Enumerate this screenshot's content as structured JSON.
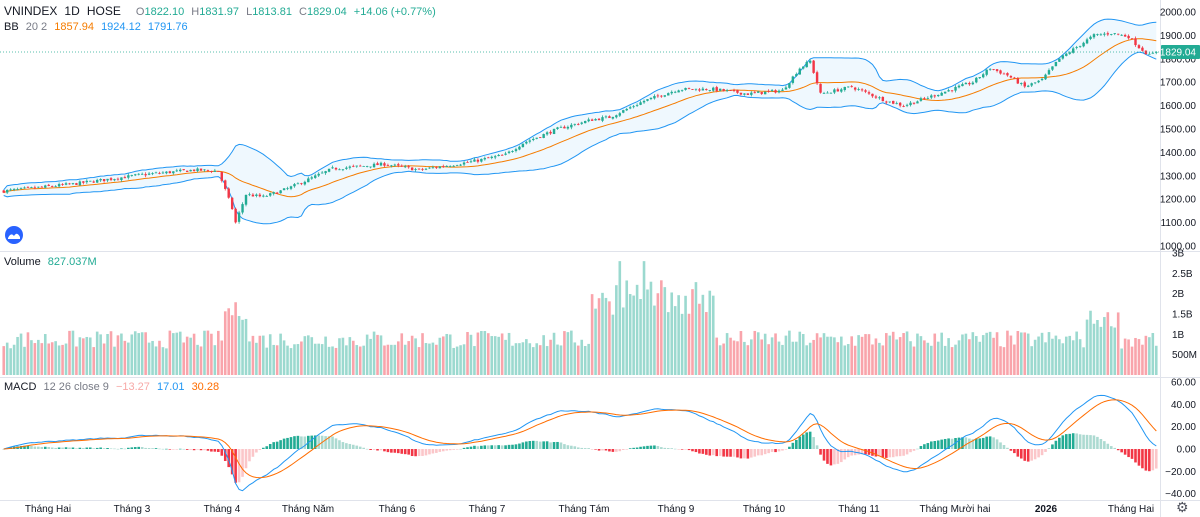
{
  "header": {
    "symbol": "VNINDEX",
    "interval": "1D",
    "exchange": "HOSE",
    "open_label": "O",
    "open": "1822.10",
    "high_label": "H",
    "high": "1831.97",
    "low_label": "L",
    "low": "1813.81",
    "close_label": "C",
    "close": "1829.04",
    "change": "+14.06 (+0.77%)"
  },
  "bb_legend": {
    "name": "BB",
    "params": "20 2",
    "basis": "1857.94",
    "upper": "1924.12",
    "lower": "1791.76"
  },
  "volume_legend": {
    "name": "Volume",
    "value": "827.037M"
  },
  "macd_legend": {
    "name": "MACD",
    "params": "12 26 close 9",
    "hist": "−13.27",
    "macd": "17.01",
    "signal": "30.28"
  },
  "price_badge": "1829.04",
  "colors": {
    "up": "#22ab94",
    "down": "#f23645",
    "bb_basis": "#f57c00",
    "bb_band": "#2196f3",
    "macd": "#2196f3",
    "signal": "#ff6d00"
  },
  "chart_data": [
    {
      "type": "candlestick",
      "axis_ticks": [
        "1000.00",
        "1100.00",
        "1200.00",
        "1300.00",
        "1400.00",
        "1500.00",
        "1600.00",
        "1700.00",
        "1800.00",
        "1900.00",
        "2000.00"
      ],
      "ylim": [
        980,
        2010
      ],
      "last_close": 1829.04,
      "series_close_keypoints": [
        [
          0,
          1235
        ],
        [
          20,
          1265
        ],
        [
          40,
          1305
        ],
        [
          55,
          1325
        ],
        [
          62,
          1320
        ],
        [
          66,
          1160
        ],
        [
          67,
          1100
        ],
        [
          70,
          1220
        ],
        [
          75,
          1210
        ],
        [
          82,
          1245
        ],
        [
          95,
          1330
        ],
        [
          110,
          1350
        ],
        [
          120,
          1325
        ],
        [
          135,
          1360
        ],
        [
          145,
          1390
        ],
        [
          150,
          1440
        ],
        [
          160,
          1500
        ],
        [
          170,
          1540
        ],
        [
          175,
          1550
        ],
        [
          185,
          1620
        ],
        [
          195,
          1670
        ],
        [
          205,
          1670
        ],
        [
          215,
          1650
        ],
        [
          225,
          1665
        ],
        [
          230,
          1760
        ],
        [
          233,
          1790
        ],
        [
          236,
          1650
        ],
        [
          245,
          1680
        ],
        [
          255,
          1620
        ],
        [
          260,
          1600
        ],
        [
          270,
          1650
        ],
        [
          280,
          1700
        ],
        [
          285,
          1760
        ],
        [
          290,
          1730
        ],
        [
          295,
          1680
        ],
        [
          300,
          1710
        ],
        [
          305,
          1800
        ],
        [
          310,
          1850
        ],
        [
          315,
          1900
        ],
        [
          320,
          1910
        ],
        [
          325,
          1895
        ],
        [
          328,
          1850
        ],
        [
          331,
          1815
        ],
        [
          333,
          1829
        ]
      ]
    },
    {
      "type": "bar",
      "name": "Volume",
      "axis_ticks": [
        "500M",
        "1B",
        "1.5B",
        "2B",
        "2.5B",
        "3B"
      ],
      "ylim": [
        0,
        3000
      ]
    },
    {
      "type": "line",
      "name": "MACD",
      "axis_ticks": [
        "−40.00",
        "−20.00",
        "0.00",
        "20.00",
        "40.00",
        "60.00"
      ],
      "ylim": [
        -45,
        60
      ]
    }
  ],
  "x_axis_labels": [
    "Tháng Hai",
    "Tháng 3",
    "Tháng 4",
    "Tháng Năm",
    "Tháng 6",
    "Tháng 7",
    "Tháng Tám",
    "Tháng 9",
    "Tháng 10",
    "Tháng 11",
    "Tháng Mười hai",
    "2026",
    "Tháng Hai"
  ]
}
